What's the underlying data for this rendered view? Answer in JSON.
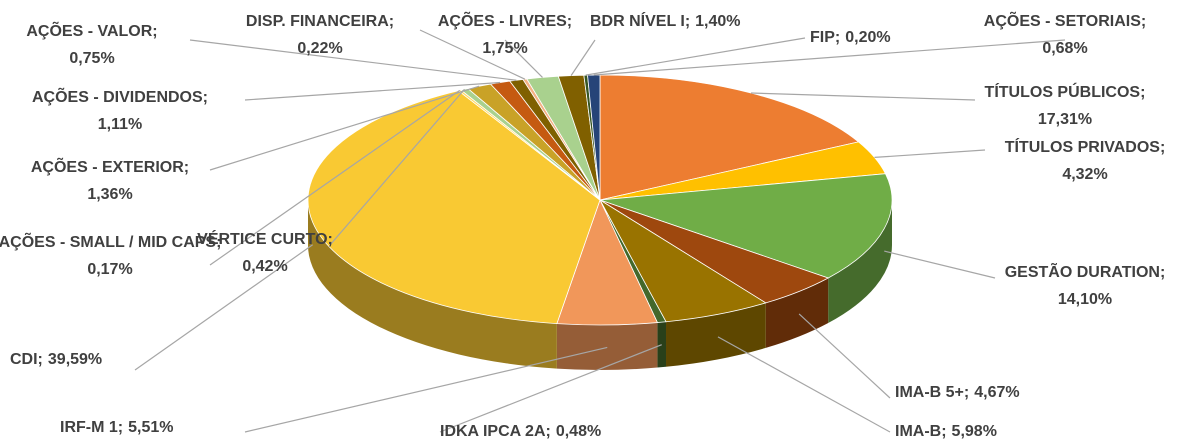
{
  "chart_data": {
    "type": "pie",
    "three_d": true,
    "categories": [
      "TÍTULOS PÚBLICOS;",
      "TÍTULOS PRIVADOS;",
      "GESTÃO DURATION;",
      "IMA-B 5+;",
      "IMA-B;",
      "IDKA IPCA 2A;",
      "IRF-M 1;",
      "CDI;",
      "AÇÕES - SMALL / MID CAPS;",
      "VÉRTICE CURTO;",
      "AÇÕES - EXTERIOR;",
      "AÇÕES - DIVIDENDOS;",
      "AÇÕES - VALOR;",
      "DISP. FINANCEIRA;",
      "AÇÕES - LIVRES;",
      "BDR NÍVEL I;",
      "FIP;",
      "AÇÕES - SETORIAIS;"
    ],
    "values": [
      17.31,
      4.32,
      14.1,
      4.67,
      5.98,
      0.48,
      5.51,
      39.59,
      0.17,
      0.42,
      1.36,
      1.11,
      0.75,
      0.22,
      1.75,
      1.4,
      0.2,
      0.68
    ],
    "value_labels": [
      "17,31%",
      "4,32%",
      "14,10%",
      "4,67%",
      "5,98%",
      "0,48%",
      "5,51%",
      "39,59%",
      "0,17%",
      "0,42%",
      "1,36%",
      "1,11%",
      "0,75%",
      "0,22%",
      "1,75%",
      "1,40%",
      "0,20%",
      "0,68%"
    ],
    "colors": [
      "#ed7d31",
      "#ffc000",
      "#70ad47",
      "#9e480e",
      "#997300",
      "#43682b",
      "#f1975a",
      "#f9c933",
      "#ffd966",
      "#a9d18e",
      "#c9a227",
      "#c55a11",
      "#7f6000",
      "#f4b183",
      "#a9d18e",
      "#806000",
      "#375623",
      "#264478"
    ]
  }
}
